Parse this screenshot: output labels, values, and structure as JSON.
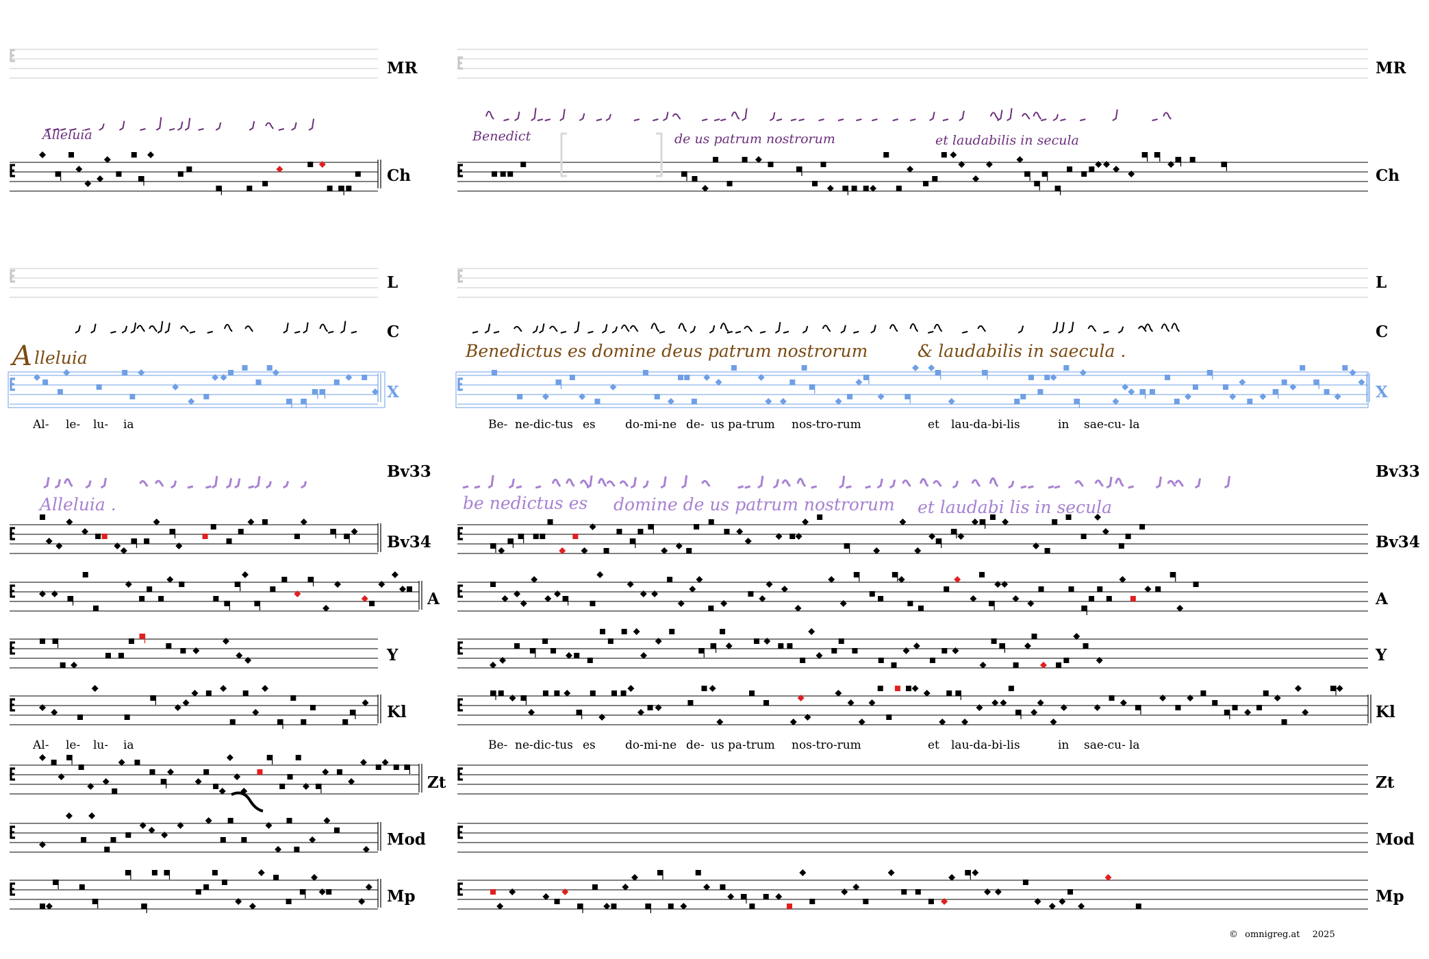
{
  "colors": {
    "ink": "#000000",
    "staff_line": "#000000",
    "empty_staff_line": "#c8c8c8",
    "highlight_red": "#e02020",
    "highlight_green": "#6aa07a",
    "x_staff_blue": "#6f9fe6",
    "adiastematic_plum": "#6b2f7c",
    "laon_brown": "#7a4a12",
    "bv33_lilac": "#a781d2"
  },
  "sigla": {
    "mr": "MR",
    "ch": "Ch",
    "l": "L",
    "c": "C",
    "x": "X",
    "bv33": "Bv33",
    "bv34": "Bv34",
    "a": "A",
    "y": "Y",
    "kl": "Kl",
    "zt": "Zt",
    "mod": "Mod",
    "mp": "Mp"
  },
  "lyrics": {
    "left": [
      "Al-",
      "le-",
      "lu-",
      "ia"
    ],
    "right": [
      "Be-",
      "ne-dic-tus",
      "es",
      "do-mi-ne",
      "de-",
      "us",
      "pa-trum",
      "nos-tro-rum",
      "et",
      "lau-da-bi-lis",
      "in",
      "sae-cu-",
      "la"
    ]
  },
  "manuscript_text": {
    "ch_left": "Alleluia",
    "ch_right": [
      "Benedict",
      "de us patrum nostrorum",
      "et laudabilis in secula"
    ],
    "c_left_initial": "A",
    "c_left_rest": "lleluia",
    "c_right": [
      "Benedictus es domine deus patrum nostrorum",
      "& laudabilis in saecula ."
    ],
    "bv33_left": "Alleluia .",
    "bv33_right": [
      "be nedictus es",
      "domine de us patrum nostrorum",
      "et laudabi lis in secula"
    ]
  },
  "icons": {
    "clef": "do-clef-icon",
    "final_barline": "double-barline-icon"
  },
  "copyright": {
    "symbol": "©",
    "site": "omnigreg.at",
    "year": "2025"
  }
}
